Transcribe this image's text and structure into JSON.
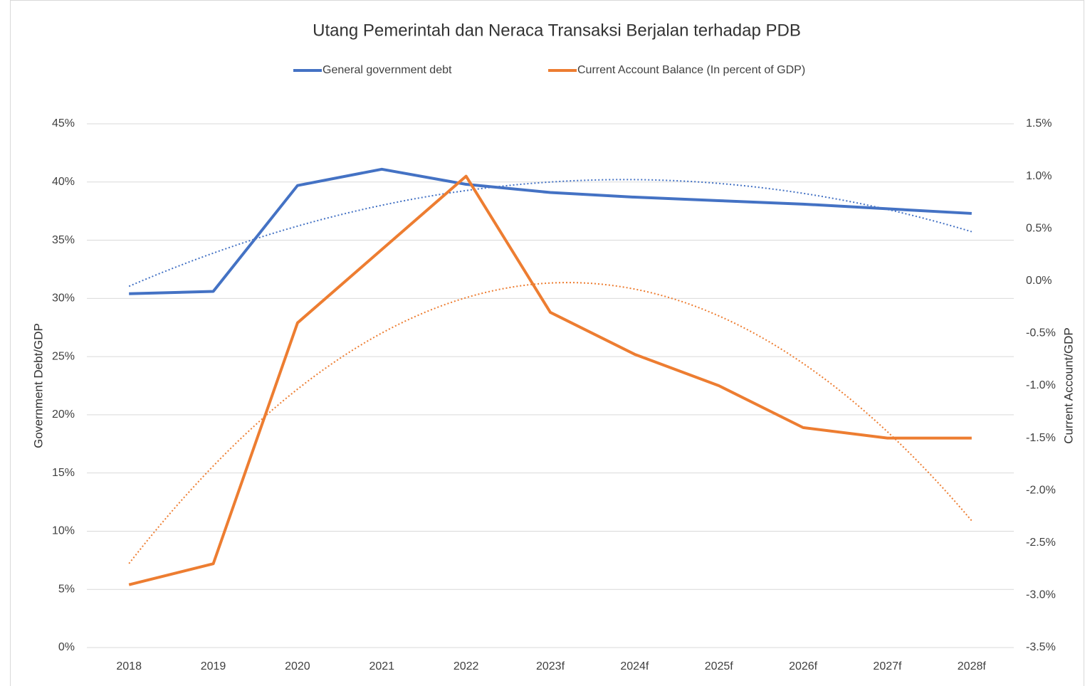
{
  "chart_data": {
    "type": "line",
    "title": "Utang Pemerintah dan Neraca Transaksi Berjalan terhadap PDB",
    "ylabel": "Government Debt/GDP",
    "y2label": "Current Account/GDP",
    "categories": [
      "2018",
      "2019",
      "2020",
      "2021",
      "2022",
      "2023f",
      "2024f",
      "2025f",
      "2026f",
      "2027f",
      "2028f"
    ],
    "series": [
      {
        "name": "General government debt",
        "color": "#4472c4",
        "axis": "y",
        "trendline": true,
        "values": [
          30.4,
          30.6,
          39.7,
          41.1,
          39.8,
          39.1,
          38.7,
          38.4,
          38.1,
          37.7,
          37.3
        ]
      },
      {
        "name": "Current Account Balance (In percent of GDP)",
        "color": "#ed7d31",
        "axis": "y2",
        "trendline": true,
        "values": [
          -2.9,
          -2.7,
          -0.4,
          0.3,
          1.0,
          -0.3,
          -0.7,
          -1.0,
          -1.4,
          -1.5,
          -1.5
        ]
      }
    ],
    "ylim": [
      0,
      45
    ],
    "yticks": [
      {
        "value": 0,
        "label": "0%"
      },
      {
        "value": 5,
        "label": "5%"
      },
      {
        "value": 10,
        "label": "10%"
      },
      {
        "value": 15,
        "label": "15%"
      },
      {
        "value": 20,
        "label": "20%"
      },
      {
        "value": 25,
        "label": "25%"
      },
      {
        "value": 30,
        "label": "30%"
      },
      {
        "value": 35,
        "label": "35%"
      },
      {
        "value": 40,
        "label": "40%"
      },
      {
        "value": 45,
        "label": "45%"
      }
    ],
    "y2lim": [
      -3.5,
      1.5
    ],
    "y2ticks": [
      {
        "value": -3.5,
        "label": "-3.5%"
      },
      {
        "value": -3.0,
        "label": "-3.0%"
      },
      {
        "value": -2.5,
        "label": "-2.5%"
      },
      {
        "value": -2.0,
        "label": "-2.0%"
      },
      {
        "value": -1.5,
        "label": "-1.5%"
      },
      {
        "value": -1.0,
        "label": "-1.0%"
      },
      {
        "value": -0.5,
        "label": "-0.5%"
      },
      {
        "value": 0.0,
        "label": "0.0%"
      },
      {
        "value": 0.5,
        "label": "0.5%"
      },
      {
        "value": 1.0,
        "label": "1.0%"
      },
      {
        "value": 1.5,
        "label": "1.5%"
      }
    ],
    "grid": true,
    "legend": "top"
  }
}
